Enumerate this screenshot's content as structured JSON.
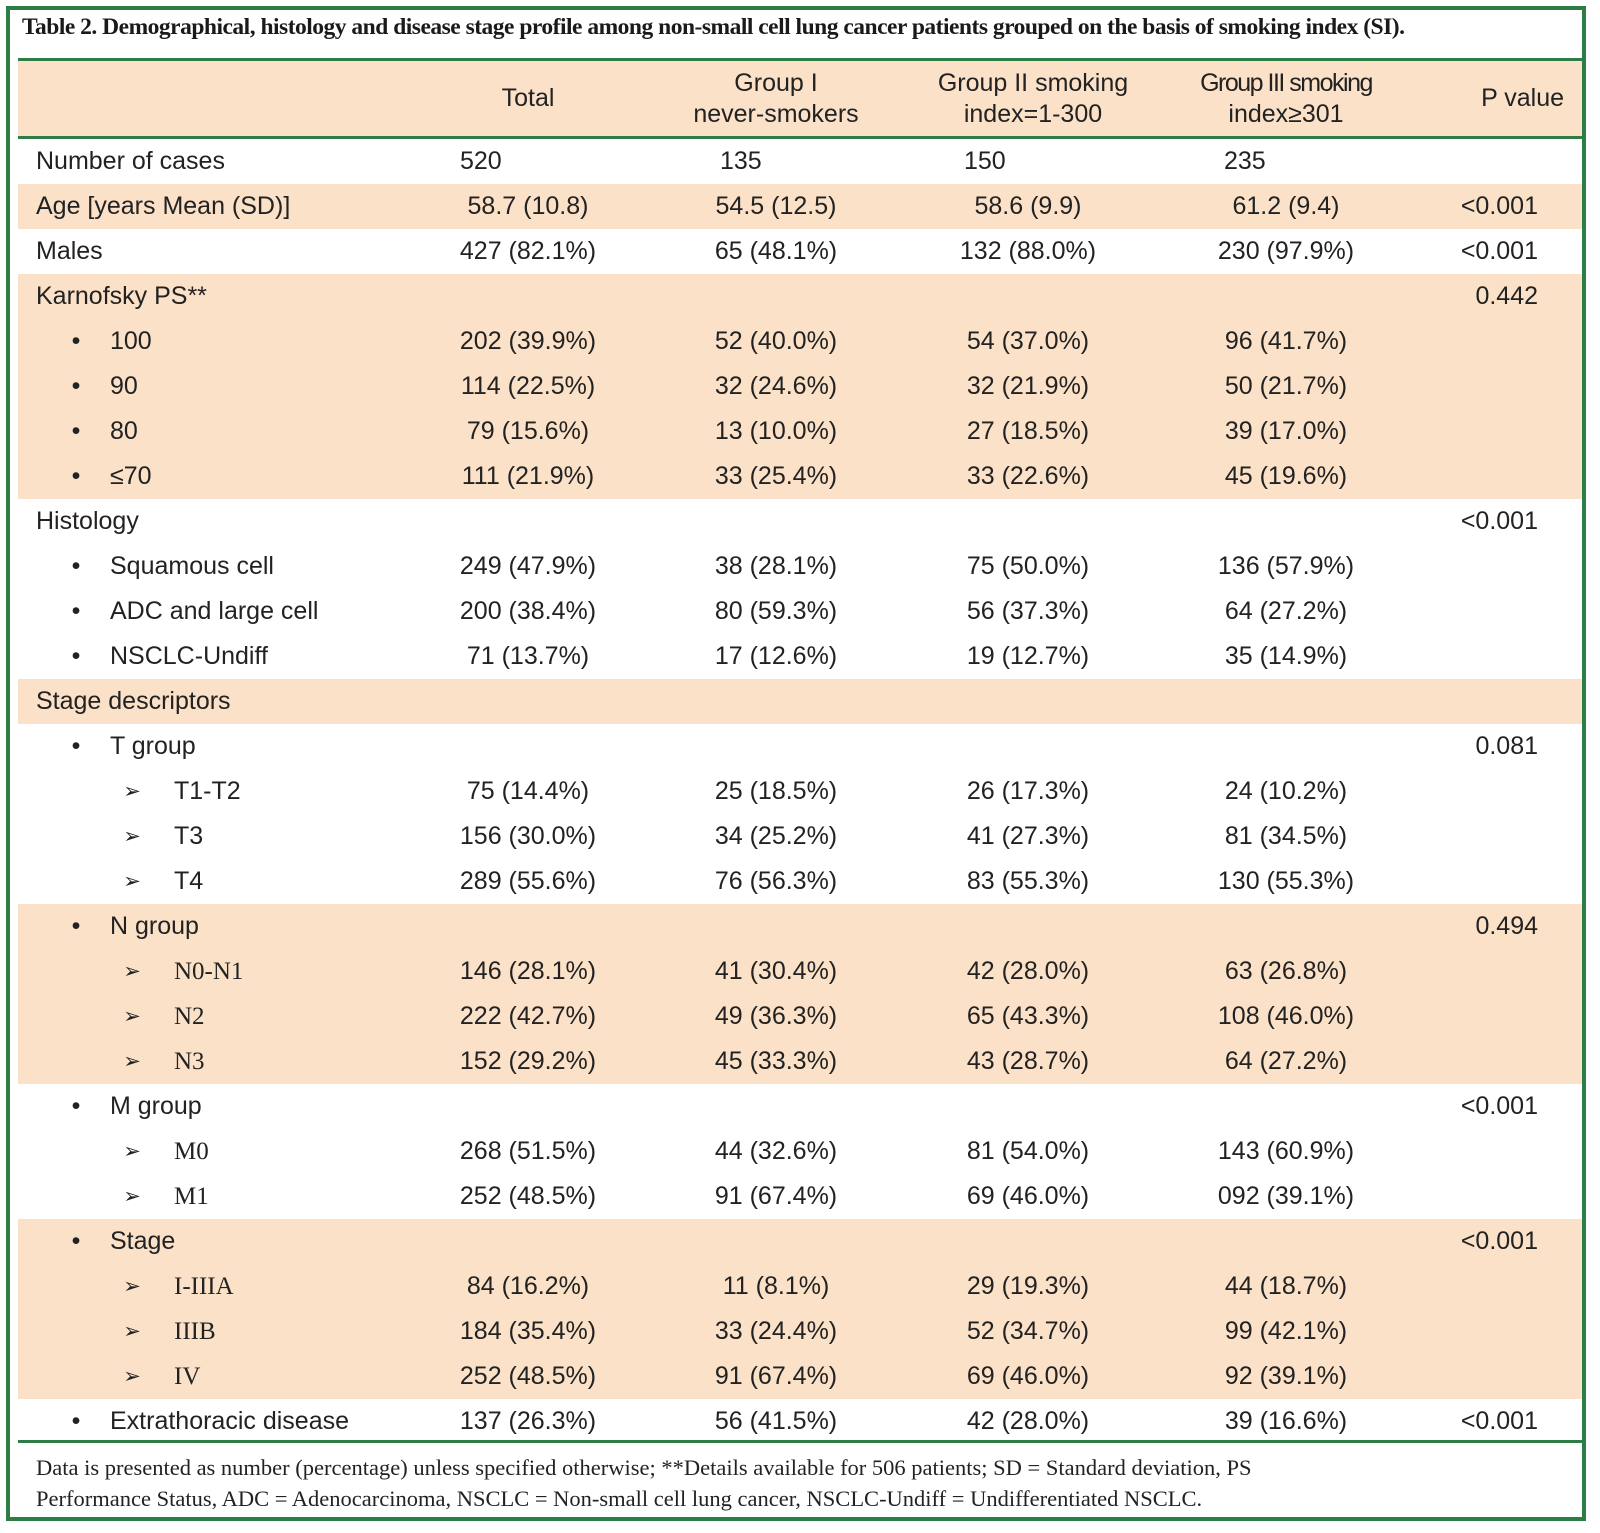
{
  "title": "Table 2. Demographical, histology and disease stage profile among non-small cell lung cancer patients grouped on the basis of smoking index (SI).",
  "header": {
    "total": "Total",
    "group1_line1": "Group I",
    "group1_line2": "never-smokers",
    "group2_line1": "Group II smoking",
    "group2_line2": "index=1-300",
    "group3_line1": "Group III smoking",
    "group3_line2": "index≥301",
    "pvalue": "P value"
  },
  "rows": [
    {
      "type": "label",
      "label": "Number of cases",
      "total": "520",
      "g1": "135",
      "g2": "150",
      "g3": "235",
      "p": "",
      "shade": false,
      "leftvals": true
    },
    {
      "type": "label",
      "label": "Age [years Mean (SD)]",
      "total": "58.7 (10.8)",
      "g1": "54.5 (12.5)",
      "g2": "58.6 (9.9)",
      "g3": "61.2 (9.4)",
      "p": "<0.001",
      "shade": true
    },
    {
      "type": "label",
      "label": "Males",
      "total": "427 (82.1%)",
      "g1": "65 (48.1%)",
      "g2": "132 (88.0%)",
      "g3": "230 (97.9%)",
      "p": "<0.001",
      "shade": false
    },
    {
      "type": "label",
      "label": "Karnofsky PS**",
      "total": "",
      "g1": "",
      "g2": "",
      "g3": "",
      "p": "0.442",
      "shade": true
    },
    {
      "type": "bullet",
      "label": "100",
      "total": "202 (39.9%)",
      "g1": "52 (40.0%)",
      "g2": "54 (37.0%)",
      "g3": "96 (41.7%)",
      "p": "",
      "shade": true
    },
    {
      "type": "bullet",
      "label": "90",
      "total": "114 (22.5%)",
      "g1": "32 (24.6%)",
      "g2": "32 (21.9%)",
      "g3": "50 (21.7%)",
      "p": "",
      "shade": true
    },
    {
      "type": "bullet",
      "label": "80",
      "total": "79 (15.6%)",
      "g1": "13 (10.0%)",
      "g2": "27 (18.5%)",
      "g3": "39 (17.0%)",
      "p": "",
      "shade": true
    },
    {
      "type": "bullet",
      "label": "≤70",
      "total": "111 (21.9%)",
      "g1": "33 (25.4%)",
      "g2": "33 (22.6%)",
      "g3": "45 (19.6%)",
      "p": "",
      "shade": true
    },
    {
      "type": "label",
      "label": "Histology",
      "total": "",
      "g1": "",
      "g2": "",
      "g3": "",
      "p": "<0.001",
      "shade": false
    },
    {
      "type": "bullet",
      "label": "Squamous cell",
      "total": "249 (47.9%)",
      "g1": "38 (28.1%)",
      "g2": "75 (50.0%)",
      "g3": "136 (57.9%)",
      "p": "",
      "shade": false
    },
    {
      "type": "bullet",
      "label": "ADC and large cell",
      "total": "200 (38.4%)",
      "g1": "80 (59.3%)",
      "g2": "56 (37.3%)",
      "g3": "64 (27.2%)",
      "p": "",
      "shade": false
    },
    {
      "type": "bullet",
      "label": "NSCLC-Undiff",
      "total": "71 (13.7%)",
      "g1": "17 (12.6%)",
      "g2": "19 (12.7%)",
      "g3": "35 (14.9%)",
      "p": "",
      "shade": false
    },
    {
      "type": "label",
      "label": "Stage descriptors",
      "total": "",
      "g1": "",
      "g2": "",
      "g3": "",
      "p": "",
      "shade": true
    },
    {
      "type": "bullet",
      "label": "T group",
      "total": "",
      "g1": "",
      "g2": "",
      "g3": "",
      "p": "0.081",
      "shade": false
    },
    {
      "type": "arrow",
      "label": "T1-T2",
      "total": "75 (14.4%)",
      "g1": "25 (18.5%)",
      "g2": "26 (17.3%)",
      "g3": "24 (10.2%)",
      "p": "",
      "shade": false
    },
    {
      "type": "arrow",
      "label": "T3",
      "total": "156 (30.0%)",
      "g1": "34 (25.2%)",
      "g2": "41 (27.3%)",
      "g3": "81 (34.5%)",
      "p": "",
      "shade": false
    },
    {
      "type": "arrow",
      "label": "T4",
      "total": "289 (55.6%)",
      "g1": "76 (56.3%)",
      "g2": "83 (55.3%)",
      "g3": "130 (55.3%)",
      "p": "",
      "shade": false
    },
    {
      "type": "bullet",
      "label": "N group",
      "total": "",
      "g1": "",
      "g2": "",
      "g3": "",
      "p": "0.494",
      "shade": true
    },
    {
      "type": "arrow",
      "label": "N0-N1",
      "total": "146 (28.1%)",
      "g1": "41 (30.4%)",
      "g2": "42 (28.0%)",
      "g3": "63 (26.8%)",
      "p": "",
      "shade": true,
      "serif": true
    },
    {
      "type": "arrow",
      "label": "N2",
      "total": "222 (42.7%)",
      "g1": "49 (36.3%)",
      "g2": "65 (43.3%)",
      "g3": "108 (46.0%)",
      "p": "",
      "shade": true,
      "serif": true
    },
    {
      "type": "arrow",
      "label": "N3",
      "total": "152 (29.2%)",
      "g1": "45 (33.3%)",
      "g2": "43 (28.7%)",
      "g3": "64 (27.2%)",
      "p": "",
      "shade": true,
      "serif": true
    },
    {
      "type": "bullet",
      "label": "M group",
      "total": "",
      "g1": "",
      "g2": "",
      "g3": "",
      "p": "<0.001",
      "shade": false
    },
    {
      "type": "arrow",
      "label": "M0",
      "total": "268 (51.5%)",
      "g1": "44 (32.6%)",
      "g2": "81 (54.0%)",
      "g3": "143 (60.9%)",
      "p": "",
      "shade": false,
      "serif": true
    },
    {
      "type": "arrow",
      "label": "M1",
      "total": "252 (48.5%)",
      "g1": "91 (67.4%)",
      "g2": "69 (46.0%)",
      "g3": "092 (39.1%)",
      "p": "",
      "shade": false,
      "serif": true
    },
    {
      "type": "bullet",
      "label": "Stage",
      "total": "",
      "g1": "",
      "g2": "",
      "g3": "",
      "p": "<0.001",
      "shade": true
    },
    {
      "type": "arrow",
      "label": "I-IIIA",
      "total": "84 (16.2%)",
      "g1": "11 (8.1%)",
      "g2": "29 (19.3%)",
      "g3": "44 (18.7%)",
      "p": "",
      "shade": true,
      "serif": true
    },
    {
      "type": "arrow",
      "label": "IIIB",
      "total": "184 (35.4%)",
      "g1": "33 (24.4%)",
      "g2": "52 (34.7%)",
      "g3": "99 (42.1%)",
      "p": "",
      "shade": true,
      "serif": true
    },
    {
      "type": "arrow",
      "label": "IV",
      "total": "252 (48.5%)",
      "g1": "91 (67.4%)",
      "g2": "69 (46.0%)",
      "g3": "92 (39.1%)",
      "p": "",
      "shade": true,
      "serif": true
    },
    {
      "type": "bullet",
      "label": "Extrathoracic disease",
      "total": "137 (26.3%)",
      "g1": "56 (41.5%)",
      "g2": "42 (28.0%)",
      "g3": "39 (16.6%)",
      "p": "<0.001",
      "shade": false
    }
  ],
  "bullet_glyph": "•",
  "arrow_glyph": "➢",
  "footnote_line1": "Data is presented as number (percentage) unless specified otherwise; **Details available for 506 patients; SD = Standard deviation, PS",
  "footnote_line2": "Performance Status, ADC = Adenocarcinoma, NSCLC = Non-small cell lung cancer, NSCLC-Undiff = Undifferentiated NSCLC.",
  "colors": {
    "border": "#2e7d47",
    "shade": "#fbe1c8"
  }
}
